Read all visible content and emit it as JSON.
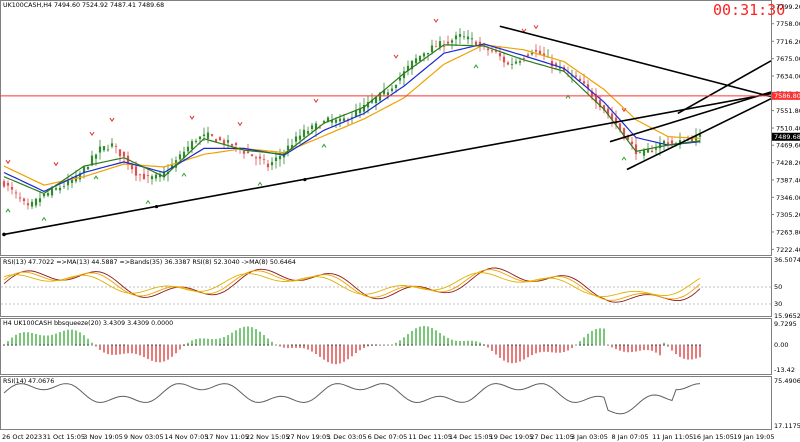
{
  "colors": {
    "bull_candle": "#2e8b2e",
    "bear_candle": "#e05050",
    "sma_fast": "#2a7a1a",
    "sma_mid": "#1a2ad0",
    "sma_slow": "#f0a000",
    "trendline": "#000000",
    "price_level_line": "#ff3030",
    "price_level_label_bg": "#ff3030",
    "timer": "#ff2020"
  },
  "timer": "00:31:30",
  "main": {
    "header": "UK100CASH,H4  7494.60 7524.92 7487.41 7489.68",
    "current_price_label": "7489.68",
    "price_level_label": "7586.80",
    "price_level": 7586.8,
    "current_price": 7489.68
  },
  "rsi_ma": {
    "header": "RSI(13) 47.7022  =>MA(13) 44.5887  =>Bands(35) 36.3387  RSI(8) 52.3040  ->MA(8) 50.6464",
    "scale_labels": [
      "36.5074",
      "50",
      "30",
      "15.9652"
    ]
  },
  "squeeze": {
    "header": "H4 UK100CASH bbsqueeze(20) 3.4309 3.4309 0.0000",
    "scale_labels": [
      "9.7295",
      "0.00",
      "-13.42"
    ]
  },
  "rsi14": {
    "header": "RSI(14) 47.0676",
    "scale_labels": [
      "75.4906",
      "17.1175"
    ]
  },
  "chart_data": {
    "type": "candlestick",
    "title": "UK100CASH,H4",
    "ylim": [
      7221.0,
      7800.0
    ],
    "y_ticks": [
      "7799.20",
      "7758.00",
      "7716.20",
      "7675.00",
      "7634.00",
      "7592.60",
      "7551.80",
      "7510.40",
      "7469.60",
      "7428.20",
      "7387.40",
      "7346.00",
      "7305.20",
      "7263.80",
      "7222.40"
    ],
    "x_ticks": [
      "26 Oct 2023",
      "31 Oct 15:05",
      "3 Nov 19:05",
      "9 Nov 03:05",
      "14 Nov 07:05",
      "17 Nov 11:05",
      "22 Nov 15:05",
      "27 Nov 19:05",
      "1 Dec 03:05",
      "6 Dec 07:05",
      "11 Dec 11:05",
      "14 Dec 15:05",
      "19 Dec 19:05",
      "27 Dec 11:05",
      "3 Jan 03:05",
      "8 Jan 07:05",
      "11 Jan 11:05",
      "16 Jan 15:05",
      "19 Jan 19:05"
    ],
    "close_path": [
      [
        0,
        7380
      ],
      [
        3,
        7350
      ],
      [
        6,
        7320
      ],
      [
        9,
        7345
      ],
      [
        12,
        7360
      ],
      [
        15,
        7375
      ],
      [
        18,
        7390
      ],
      [
        21,
        7425
      ],
      [
        24,
        7460
      ],
      [
        27,
        7470
      ],
      [
        30,
        7440
      ],
      [
        33,
        7405
      ],
      [
        36,
        7390
      ],
      [
        39,
        7395
      ],
      [
        42,
        7420
      ],
      [
        45,
        7455
      ],
      [
        48,
        7485
      ],
      [
        51,
        7492
      ],
      [
        54,
        7480
      ],
      [
        57,
        7470
      ],
      [
        60,
        7455
      ],
      [
        63,
        7440
      ],
      [
        66,
        7420
      ],
      [
        69,
        7445
      ],
      [
        72,
        7475
      ],
      [
        75,
        7500
      ],
      [
        78,
        7515
      ],
      [
        81,
        7528
      ],
      [
        84,
        7525
      ],
      [
        87,
        7540
      ],
      [
        90,
        7560
      ],
      [
        93,
        7580
      ],
      [
        96,
        7600
      ],
      [
        99,
        7630
      ],
      [
        102,
        7665
      ],
      [
        105,
        7690
      ],
      [
        108,
        7705
      ],
      [
        111,
        7715
      ],
      [
        114,
        7728
      ],
      [
        117,
        7718
      ],
      [
        120,
        7700
      ],
      [
        123,
        7688
      ],
      [
        126,
        7660
      ],
      [
        129,
        7675
      ],
      [
        132,
        7695
      ],
      [
        135,
        7680
      ],
      [
        138,
        7655
      ],
      [
        141,
        7640
      ],
      [
        144,
        7620
      ],
      [
        147,
        7590
      ],
      [
        150,
        7555
      ],
      [
        153,
        7520
      ],
      [
        156,
        7480
      ],
      [
        159,
        7445
      ],
      [
        162,
        7460
      ],
      [
        165,
        7478
      ],
      [
        168,
        7472
      ],
      [
        171,
        7484
      ],
      [
        174,
        7489.68
      ]
    ],
    "ma_fast_path": [
      [
        0,
        7395
      ],
      [
        10,
        7355
      ],
      [
        20,
        7420
      ],
      [
        30,
        7440
      ],
      [
        40,
        7395
      ],
      [
        50,
        7485
      ],
      [
        60,
        7458
      ],
      [
        70,
        7448
      ],
      [
        80,
        7522
      ],
      [
        90,
        7560
      ],
      [
        100,
        7640
      ],
      [
        110,
        7708
      ],
      [
        120,
        7705
      ],
      [
        130,
        7672
      ],
      [
        140,
        7645
      ],
      [
        150,
        7555
      ],
      [
        158,
        7455
      ],
      [
        166,
        7470
      ],
      [
        174,
        7480
      ]
    ],
    "ma_mid_path": [
      [
        0,
        7405
      ],
      [
        10,
        7360
      ],
      [
        20,
        7405
      ],
      [
        30,
        7430
      ],
      [
        40,
        7405
      ],
      [
        50,
        7462
      ],
      [
        60,
        7462
      ],
      [
        70,
        7446
      ],
      [
        80,
        7505
      ],
      [
        90,
        7545
      ],
      [
        100,
        7610
      ],
      [
        110,
        7688
      ],
      [
        120,
        7710
      ],
      [
        130,
        7682
      ],
      [
        140,
        7652
      ],
      [
        150,
        7572
      ],
      [
        158,
        7488
      ],
      [
        166,
        7470
      ],
      [
        174,
        7478
      ]
    ],
    "ma_slow_path": [
      [
        0,
        7420
      ],
      [
        10,
        7375
      ],
      [
        20,
        7395
      ],
      [
        30,
        7425
      ],
      [
        40,
        7418
      ],
      [
        50,
        7448
      ],
      [
        60,
        7462
      ],
      [
        70,
        7452
      ],
      [
        80,
        7492
      ],
      [
        90,
        7532
      ],
      [
        100,
        7582
      ],
      [
        110,
        7662
      ],
      [
        120,
        7708
      ],
      [
        130,
        7696
      ],
      [
        140,
        7668
      ],
      [
        150,
        7602
      ],
      [
        158,
        7530
      ],
      [
        166,
        7490
      ],
      [
        174,
        7486
      ]
    ],
    "trendlines": [
      {
        "name": "long-support",
        "p1": [
          0,
          7258
        ],
        "p2": [
          181,
          7592
        ]
      },
      {
        "name": "descending-resistance",
        "p1": [
          117,
          7752
        ],
        "p2": [
          181,
          7585
        ]
      },
      {
        "name": "channel-upper",
        "p1": [
          143,
          7478
        ],
        "p2": [
          181,
          7596
        ]
      },
      {
        "name": "channel-lower",
        "p1": [
          147,
          7412
        ],
        "p2": [
          181,
          7580
        ]
      },
      {
        "name": "upper-ray",
        "p1": [
          159,
          7545
        ],
        "p2": [
          181,
          7670
        ]
      }
    ],
    "buy_arrow_idx": [
      1,
      10,
      23,
      36,
      45,
      64,
      80,
      118,
      141,
      155
    ],
    "sell_arrow_idx": [
      1,
      13,
      22,
      27,
      47,
      59,
      78,
      98,
      108,
      130,
      133,
      155
    ]
  }
}
